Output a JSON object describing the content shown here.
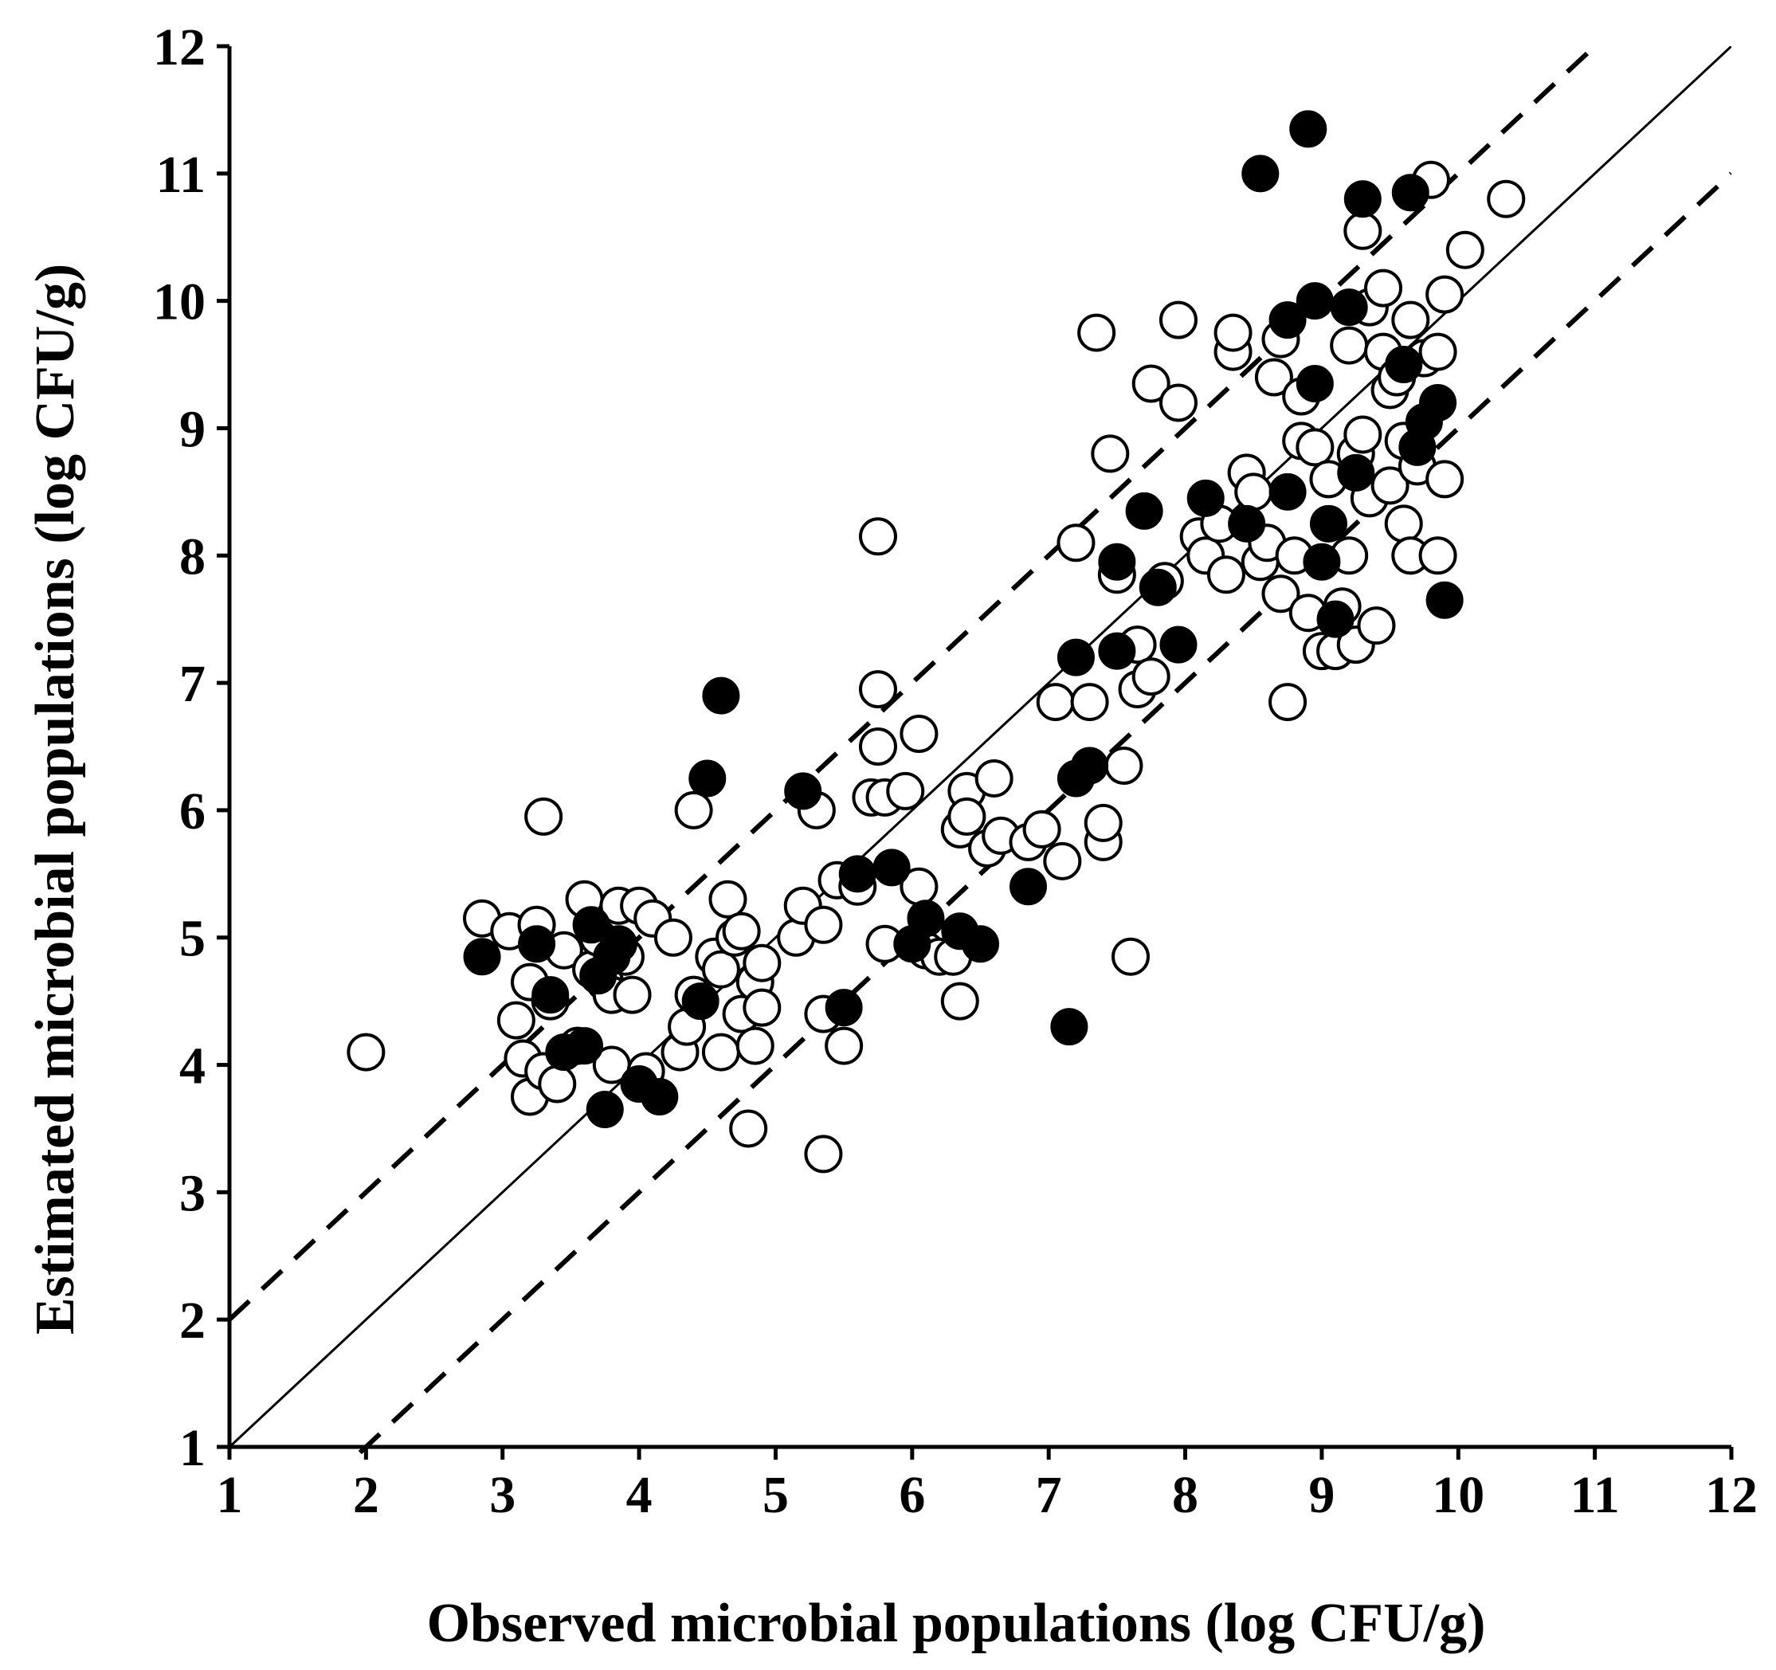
{
  "chart_data": {
    "type": "scatter",
    "title": "",
    "xlabel": "Observed microbial populations (log CFU/g)",
    "ylabel": "Estimated microbial populations (log CFU/g)",
    "xlim": [
      1,
      12
    ],
    "ylim": [
      1,
      12
    ],
    "xticks": [
      "1",
      "2",
      "3",
      "4",
      "5",
      "6",
      "7",
      "8",
      "9",
      "10",
      "11",
      "12"
    ],
    "yticks": [
      "1",
      "2",
      "3",
      "4",
      "5",
      "6",
      "7",
      "8",
      "9",
      "10",
      "11",
      "12"
    ],
    "grid": false,
    "reference_lines": [
      {
        "name": "line-of-equality",
        "style": "solid",
        "intercept": 0
      },
      {
        "name": "upper-bound",
        "style": "dashed",
        "intercept": 1
      },
      {
        "name": "lower-bound",
        "style": "dashed",
        "intercept": -1
      }
    ],
    "series": [
      {
        "name": "open-circles",
        "marker": "open-circle",
        "points": [
          [
            2.0,
            4.1
          ],
          [
            2.85,
            5.15
          ],
          [
            3.05,
            5.05
          ],
          [
            3.1,
            4.35
          ],
          [
            3.15,
            4.05
          ],
          [
            3.2,
            3.75
          ],
          [
            3.2,
            4.65
          ],
          [
            3.25,
            5.1
          ],
          [
            3.3,
            5.95
          ],
          [
            3.3,
            3.95
          ],
          [
            3.35,
            4.5
          ],
          [
            3.4,
            3.85
          ],
          [
            3.45,
            4.9
          ],
          [
            3.55,
            4.15
          ],
          [
            3.6,
            5.3
          ],
          [
            3.65,
            4.75
          ],
          [
            3.7,
            5.0
          ],
          [
            3.75,
            4.65
          ],
          [
            3.8,
            4.55
          ],
          [
            3.8,
            4.0
          ],
          [
            3.85,
            5.25
          ],
          [
            3.9,
            4.85
          ],
          [
            3.95,
            4.55
          ],
          [
            4.0,
            5.25
          ],
          [
            4.05,
            3.95
          ],
          [
            4.1,
            5.15
          ],
          [
            4.25,
            5.0
          ],
          [
            4.3,
            4.1
          ],
          [
            4.35,
            4.3
          ],
          [
            4.4,
            4.55
          ],
          [
            4.4,
            6.0
          ],
          [
            4.55,
            4.85
          ],
          [
            4.6,
            4.1
          ],
          [
            4.6,
            4.75
          ],
          [
            4.65,
            5.3
          ],
          [
            4.7,
            5.0
          ],
          [
            4.75,
            5.05
          ],
          [
            4.75,
            4.4
          ],
          [
            4.8,
            3.5
          ],
          [
            4.85,
            4.65
          ],
          [
            4.85,
            4.15
          ],
          [
            4.9,
            4.45
          ],
          [
            4.9,
            4.8
          ],
          [
            5.15,
            5.0
          ],
          [
            5.2,
            5.25
          ],
          [
            5.3,
            6.0
          ],
          [
            5.35,
            4.4
          ],
          [
            5.35,
            5.1
          ],
          [
            5.35,
            3.3
          ],
          [
            5.45,
            5.45
          ],
          [
            5.5,
            4.15
          ],
          [
            5.6,
            5.4
          ],
          [
            5.7,
            6.1
          ],
          [
            5.75,
            6.95
          ],
          [
            5.75,
            6.5
          ],
          [
            5.75,
            8.15
          ],
          [
            5.8,
            4.95
          ],
          [
            5.8,
            6.1
          ],
          [
            5.95,
            6.15
          ],
          [
            6.05,
            6.6
          ],
          [
            6.05,
            5.4
          ],
          [
            6.1,
            4.9
          ],
          [
            6.2,
            4.85
          ],
          [
            6.3,
            4.85
          ],
          [
            6.35,
            4.5
          ],
          [
            6.35,
            5.85
          ],
          [
            6.4,
            6.15
          ],
          [
            6.4,
            5.95
          ],
          [
            6.55,
            5.7
          ],
          [
            6.6,
            6.25
          ],
          [
            6.65,
            5.8
          ],
          [
            6.85,
            5.75
          ],
          [
            6.95,
            5.85
          ],
          [
            7.05,
            6.85
          ],
          [
            7.1,
            5.6
          ],
          [
            7.2,
            8.1
          ],
          [
            7.3,
            6.85
          ],
          [
            7.35,
            9.75
          ],
          [
            7.4,
            5.75
          ],
          [
            7.4,
            5.9
          ],
          [
            7.45,
            8.8
          ],
          [
            7.5,
            7.85
          ],
          [
            7.55,
            6.35
          ],
          [
            7.6,
            4.85
          ],
          [
            7.65,
            7.3
          ],
          [
            7.65,
            6.95
          ],
          [
            7.75,
            7.05
          ],
          [
            7.75,
            9.35
          ],
          [
            7.85,
            7.8
          ],
          [
            7.95,
            9.2
          ],
          [
            7.95,
            9.85
          ],
          [
            8.1,
            8.15
          ],
          [
            8.15,
            8.0
          ],
          [
            8.25,
            8.25
          ],
          [
            8.3,
            7.85
          ],
          [
            8.35,
            9.6
          ],
          [
            8.35,
            9.75
          ],
          [
            8.45,
            8.65
          ],
          [
            8.5,
            8.5
          ],
          [
            8.55,
            7.95
          ],
          [
            8.6,
            8.1
          ],
          [
            8.65,
            9.4
          ],
          [
            8.7,
            7.7
          ],
          [
            8.7,
            9.7
          ],
          [
            8.75,
            6.85
          ],
          [
            8.8,
            8.0
          ],
          [
            8.85,
            8.9
          ],
          [
            8.85,
            9.25
          ],
          [
            8.9,
            7.55
          ],
          [
            8.95,
            8.85
          ],
          [
            9.0,
            7.25
          ],
          [
            9.05,
            8.6
          ],
          [
            9.1,
            7.25
          ],
          [
            9.15,
            7.6
          ],
          [
            9.2,
            8.0
          ],
          [
            9.2,
            9.65
          ],
          [
            9.25,
            7.3
          ],
          [
            9.25,
            8.8
          ],
          [
            9.3,
            8.95
          ],
          [
            9.3,
            10.55
          ],
          [
            9.35,
            8.45
          ],
          [
            9.35,
            9.95
          ],
          [
            9.4,
            7.45
          ],
          [
            9.45,
            10.1
          ],
          [
            9.45,
            9.6
          ],
          [
            9.5,
            8.55
          ],
          [
            9.5,
            9.3
          ],
          [
            9.55,
            9.4
          ],
          [
            9.6,
            8.9
          ],
          [
            9.6,
            8.25
          ],
          [
            9.65,
            8.0
          ],
          [
            9.65,
            9.85
          ],
          [
            9.7,
            8.7
          ],
          [
            9.75,
            9.55
          ],
          [
            9.8,
            10.95
          ],
          [
            9.85,
            8.0
          ],
          [
            9.85,
            9.6
          ],
          [
            9.9,
            10.05
          ],
          [
            9.9,
            8.6
          ],
          [
            10.05,
            10.4
          ],
          [
            10.35,
            10.8
          ]
        ]
      },
      {
        "name": "filled-circles",
        "marker": "filled-circle",
        "points": [
          [
            2.85,
            4.85
          ],
          [
            3.25,
            4.95
          ],
          [
            3.35,
            4.55
          ],
          [
            3.45,
            4.1
          ],
          [
            3.6,
            4.15
          ],
          [
            3.65,
            5.1
          ],
          [
            3.7,
            4.7
          ],
          [
            3.75,
            3.65
          ],
          [
            3.8,
            4.85
          ],
          [
            3.85,
            4.95
          ],
          [
            4.0,
            3.85
          ],
          [
            4.15,
            3.75
          ],
          [
            4.45,
            4.5
          ],
          [
            4.5,
            6.25
          ],
          [
            4.6,
            6.9
          ],
          [
            5.2,
            6.15
          ],
          [
            5.5,
            4.45
          ],
          [
            5.6,
            5.5
          ],
          [
            5.85,
            5.55
          ],
          [
            6.0,
            4.95
          ],
          [
            6.1,
            5.15
          ],
          [
            6.35,
            5.05
          ],
          [
            6.5,
            4.95
          ],
          [
            6.85,
            5.4
          ],
          [
            7.15,
            4.3
          ],
          [
            7.2,
            7.2
          ],
          [
            7.2,
            6.25
          ],
          [
            7.3,
            6.35
          ],
          [
            7.5,
            7.25
          ],
          [
            7.5,
            7.95
          ],
          [
            7.7,
            8.35
          ],
          [
            7.8,
            7.75
          ],
          [
            7.95,
            7.3
          ],
          [
            8.15,
            8.45
          ],
          [
            8.45,
            8.25
          ],
          [
            8.55,
            11.0
          ],
          [
            8.75,
            8.5
          ],
          [
            8.75,
            9.85
          ],
          [
            8.9,
            11.35
          ],
          [
            8.95,
            10.0
          ],
          [
            8.95,
            9.35
          ],
          [
            9.0,
            7.95
          ],
          [
            9.05,
            8.25
          ],
          [
            9.1,
            7.5
          ],
          [
            9.2,
            9.95
          ],
          [
            9.25,
            8.65
          ],
          [
            9.3,
            10.8
          ],
          [
            9.6,
            9.5
          ],
          [
            9.65,
            10.85
          ],
          [
            9.7,
            8.85
          ],
          [
            9.75,
            9.05
          ],
          [
            9.85,
            9.2
          ],
          [
            9.9,
            7.65
          ]
        ]
      }
    ]
  }
}
